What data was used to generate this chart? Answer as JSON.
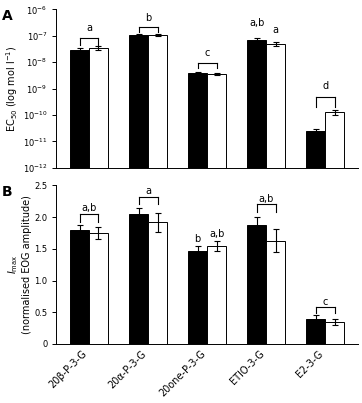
{
  "categories": [
    "20β-P-3-G",
    "20α-P-3-G",
    "20one-P-3-G",
    "ETIO-3-G",
    "E2-3-G"
  ],
  "ec50_black": [
    3e-08,
    1.1e-07,
    4e-09,
    7e-08,
    2.5e-11
  ],
  "ec50_white": [
    3.5e-08,
    1.1e-07,
    3.5e-09,
    5e-08,
    1.3e-10
  ],
  "ec50_err_black": [
    5e-09,
    5e-09,
    4e-10,
    1e-08,
    5e-12
  ],
  "ec50_err_white": [
    5e-09,
    8e-09,
    3e-10,
    8e-09,
    3e-11
  ],
  "imax_black": [
    1.8,
    2.05,
    1.47,
    1.88,
    0.4
  ],
  "imax_white": [
    1.75,
    1.92,
    1.54,
    1.63,
    0.35
  ],
  "imax_err_black": [
    0.07,
    0.09,
    0.07,
    0.12,
    0.06
  ],
  "imax_err_white": [
    0.1,
    0.15,
    0.08,
    0.18,
    0.05
  ],
  "bar_width": 0.32,
  "black_color": "#000000",
  "white_color": "#ffffff",
  "edge_color": "#000000",
  "background": "#ffffff",
  "fig_width": 3.62,
  "fig_height": 4.03,
  "dpi": 100
}
